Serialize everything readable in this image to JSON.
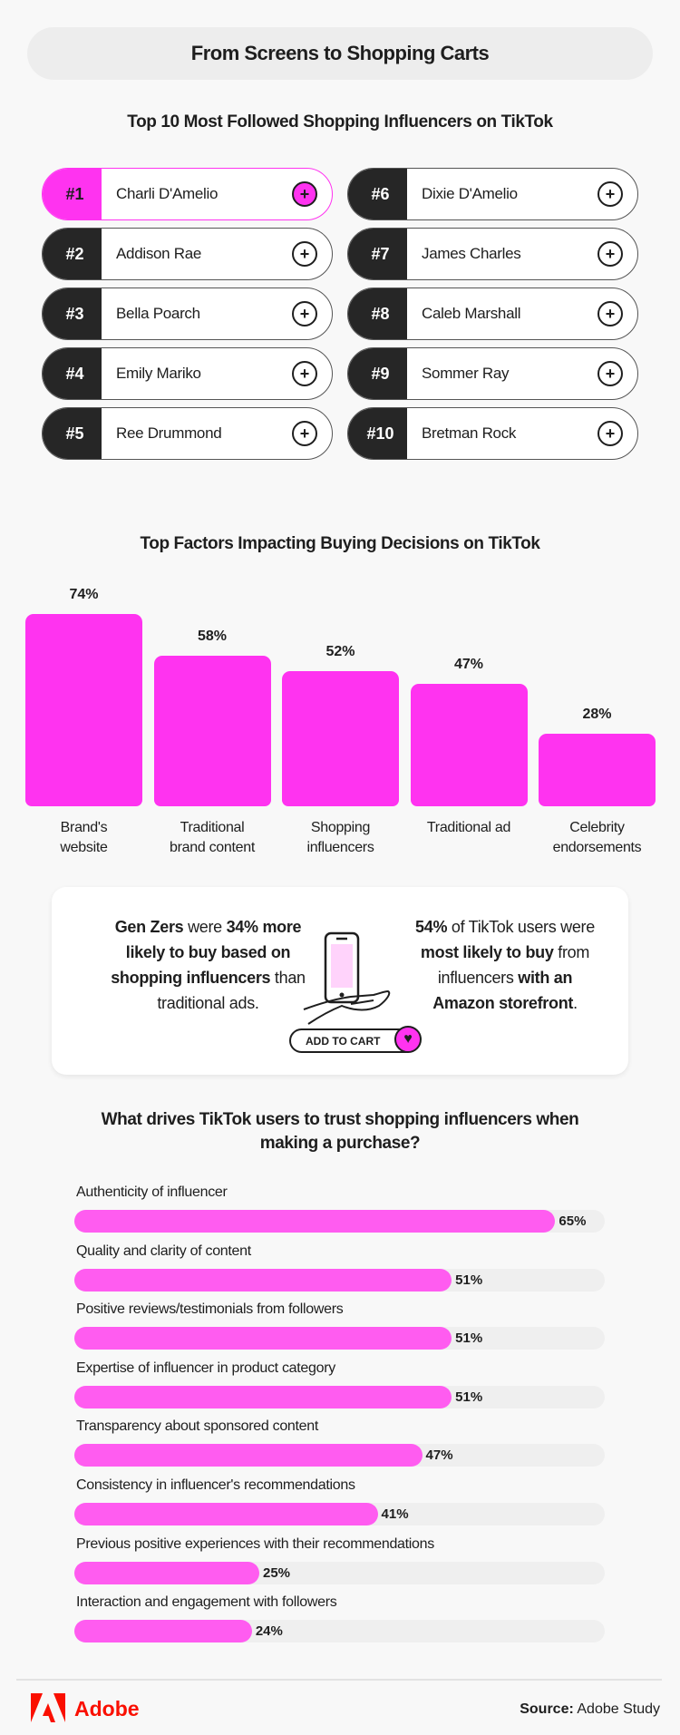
{
  "header": {
    "title": "From Screens to Shopping Carts"
  },
  "influencers": {
    "title": "Top 10 Most Followed Shopping Influencers on TikTok",
    "items": [
      {
        "rank": "#1",
        "name": "Charli D'Amelio"
      },
      {
        "rank": "#2",
        "name": "Addison Rae"
      },
      {
        "rank": "#3",
        "name": "Bella Poarch"
      },
      {
        "rank": "#4",
        "name": "Emily Mariko"
      },
      {
        "rank": "#5",
        "name": "Ree Drummond"
      },
      {
        "rank": "#6",
        "name": "Dixie D'Amelio"
      },
      {
        "rank": "#7",
        "name": "James Charles"
      },
      {
        "rank": "#8",
        "name": "Caleb Marshall"
      },
      {
        "rank": "#9",
        "name": "Sommer Ray"
      },
      {
        "rank": "#10",
        "name": "Bretman Rock"
      }
    ],
    "plus_symbol": "+"
  },
  "chart_data": [
    {
      "type": "bar",
      "title": "Top Factors Impacting Buying Decisions on TikTok",
      "categories": [
        [
          "Brand's",
          "website"
        ],
        [
          "Traditional",
          "brand content"
        ],
        [
          "Shopping",
          "influencers"
        ],
        [
          "Traditional ad",
          ""
        ],
        [
          "Celebrity",
          "endorsements"
        ]
      ],
      "values": [
        74,
        58,
        52,
        47,
        28
      ],
      "value_labels": [
        "74%",
        "58%",
        "52%",
        "47%",
        "28%"
      ],
      "ylim": [
        0,
        74
      ],
      "color": "#ff33f0"
    },
    {
      "type": "bar",
      "orientation": "horizontal",
      "title": "What drives TikTok users to trust shopping influencers when making a purchase?",
      "title_lines": [
        "What drives TikTok users to trust shopping influencers when",
        "making a purchase?"
      ],
      "categories": [
        "Authenticity of influencer",
        "Quality and clarity of content",
        "Positive reviews/testimonials from followers",
        "Expertise of influencer in product category",
        "Transparency about sponsored content",
        "Consistency in influencer's recommendations",
        "Previous positive experiences with their recommendations",
        "Interaction and engagement with followers"
      ],
      "values": [
        65,
        51,
        51,
        51,
        47,
        41,
        25,
        24
      ],
      "value_labels": [
        "65%",
        "51%",
        "51%",
        "51%",
        "47%",
        "41%",
        "25%",
        "24%"
      ],
      "color": "#ff5cf0",
      "track_color": "#efefef"
    }
  ],
  "stats_card": {
    "left": {
      "bold1": "Gen Zers",
      "t1": " were ",
      "bold2": "34%",
      "bold3": "more likely to buy based on shopping influencers",
      "t2": " than traditional ads."
    },
    "right": {
      "bold1": "54%",
      "t1": " of TikTok users were ",
      "bold2": "most likely to buy",
      "t2": " from influencers ",
      "bold3": "with an Amazon storefront",
      "t3": "."
    },
    "button_label": "ADD TO CART"
  },
  "footer": {
    "logo_text": "Adobe",
    "source_label": "Source:",
    "source_value": " Adobe Study"
  },
  "colors": {
    "accent": "#ff33f0",
    "dark": "#262626",
    "adobe_red": "#fa0f00"
  }
}
